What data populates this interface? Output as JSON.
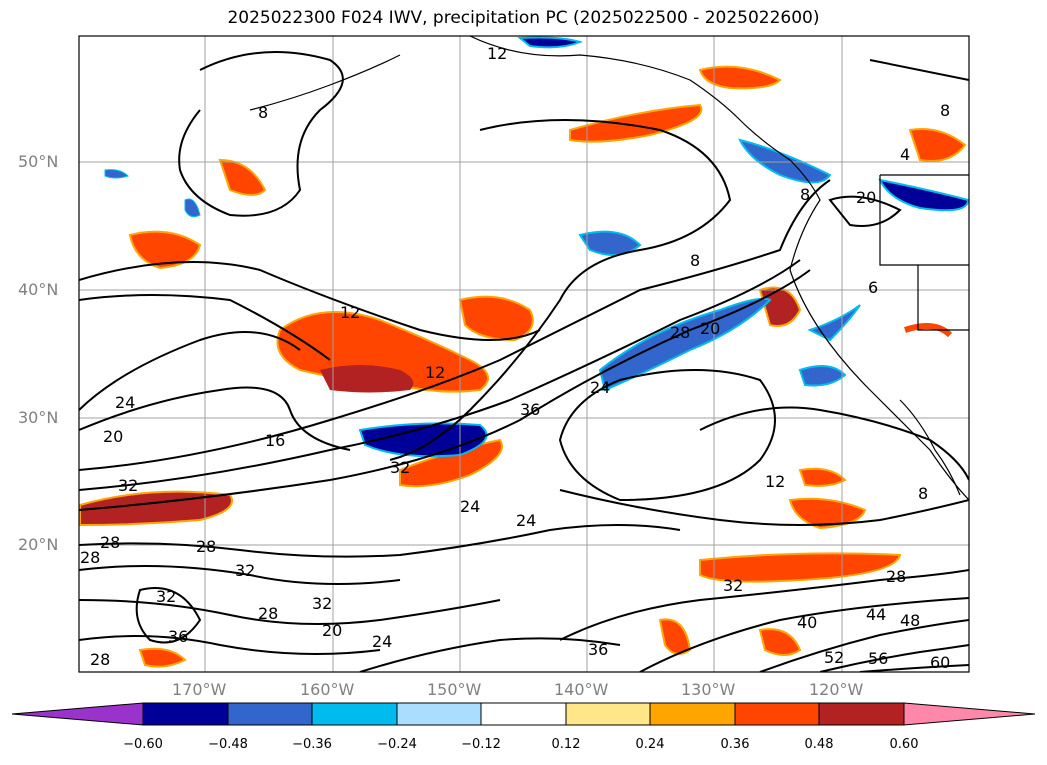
{
  "title": "2025022300 F024 IWV, precipitation PC (2025022500 - 2025022600)",
  "map": {
    "lat_labels": [
      "50°N",
      "40°N",
      "30°N",
      "20°N"
    ],
    "lon_labels": [
      "170°W",
      "160°W",
      "150°W",
      "140°W",
      "130°W",
      "120°W"
    ],
    "gridlines": true,
    "iwv_contour_labels": [
      "12",
      "8",
      "8",
      "4",
      "20",
      "8",
      "12",
      "20",
      "28",
      "24",
      "20",
      "12",
      "16",
      "36",
      "24",
      "32",
      "32",
      "24",
      "28",
      "32",
      "28",
      "32",
      "28",
      "24",
      "28",
      "36",
      "32",
      "28",
      "20",
      "24",
      "36",
      "12",
      "8",
      "28",
      "32",
      "40",
      "44",
      "48",
      "52",
      "56",
      "60",
      "6",
      "8"
    ]
  },
  "colorbar": {
    "ticks": [
      "−0.60",
      "−0.48",
      "−0.36",
      "−0.24",
      "−0.12",
      "0.12",
      "0.24",
      "0.36",
      "0.48",
      "0.60"
    ],
    "colors": [
      "#9933cc",
      "#000099",
      "#3366cc",
      "#00bbee",
      "#aaddff",
      "#ffffff",
      "#ffe688",
      "#ffa500",
      "#ff4500",
      "#b22222",
      "#ff88aa"
    ]
  },
  "colors": {
    "land_outline": "#000000",
    "contour": "#000000",
    "grid": "#a0a0a0"
  }
}
